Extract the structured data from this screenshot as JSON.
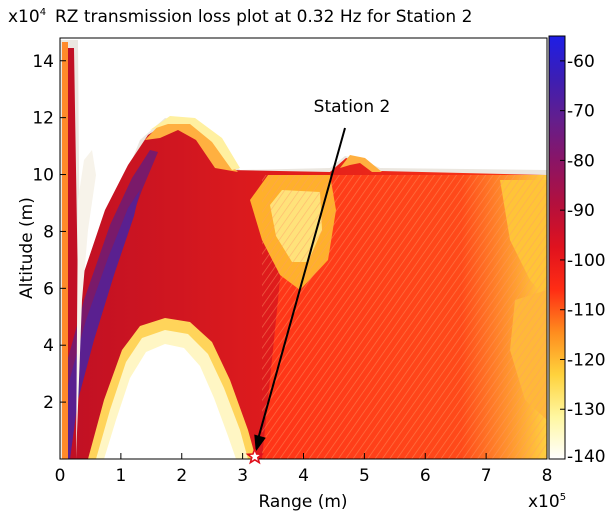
{
  "chart_data": {
    "type": "heatmap",
    "title": "RZ transmission loss plot at 0.32 Hz for Station 2",
    "xlabel": "Range (m)",
    "ylabel": "Altitude (m)",
    "x_exponent_base": "x10",
    "x_exponent_power": "5",
    "y_exponent_base": "x10",
    "y_exponent_power": "4",
    "xlim": [
      0,
      8
    ],
    "ylim": [
      0,
      14.8
    ],
    "xticks": [
      0,
      1,
      2,
      3,
      4,
      5,
      6,
      7,
      8
    ],
    "xtick_labels": [
      "0",
      "1",
      "2",
      "3",
      "4",
      "5",
      "6",
      "7",
      "8"
    ],
    "yticks": [
      2,
      4,
      6,
      8,
      10,
      12,
      14
    ],
    "ytick_labels": [
      "2",
      "4",
      "6",
      "8",
      "10",
      "12",
      "14"
    ],
    "colorbar": {
      "range": [
        -140,
        -55
      ],
      "ticks": [
        -60,
        -70,
        -80,
        -90,
        -100,
        -110,
        -120,
        -130,
        -140
      ],
      "tick_labels": [
        "-60",
        "-70",
        "-80",
        "-90",
        "-100",
        "-110",
        "-120",
        "-130",
        "-140"
      ],
      "colors": [
        "#ffffff",
        "#fff7a0",
        "#ffd23c",
        "#ff8c1e",
        "#ff2d14",
        "#e0121e",
        "#b4103c",
        "#8c1464",
        "#641e8c",
        "#3c1eb4",
        "#1e1ee6"
      ]
    },
    "annotation": {
      "text": "Station 2",
      "point": [
        3.2,
        0.05
      ]
    },
    "dominant_value": -115,
    "marker": "star"
  }
}
